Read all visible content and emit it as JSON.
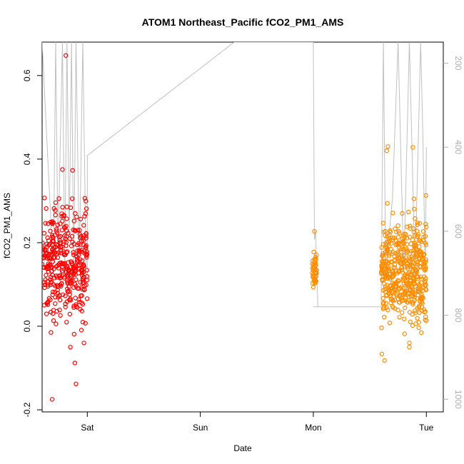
{
  "chart_data": {
    "type": "scatter",
    "title": "ATOM1 Northeast_Pacific fCO2_PM1_AMS",
    "xlabel": "Date",
    "ylabel": "fCO2_PM1_AMS",
    "x_ticks": [
      "Sat",
      "Sun",
      "Mon",
      "Tue"
    ],
    "x_tick_values": [
      1.0,
      2.0,
      3.0,
      4.0
    ],
    "xlim": [
      0.6,
      4.15
    ],
    "ylim": [
      -0.205,
      0.68
    ],
    "y_ticks": [
      -0.2,
      0.0,
      0.2,
      0.4,
      0.6
    ],
    "y2_ticks": [
      200,
      400,
      600,
      800,
      1000
    ],
    "y2lim": [
      1030,
      150
    ],
    "y2_reversed": true,
    "grid": false,
    "legend": "none",
    "colors": {
      "early": "#ff0000",
      "late": "#ff8c00",
      "altitude": "#c0c0c0"
    },
    "series": [
      {
        "color": "#ff0000",
        "clusters": [
          {
            "x_range": [
              0.6,
              1.0
            ],
            "y_center": 0.15,
            "y_spread": 0.07,
            "count": 380
          }
        ],
        "outliers": [
          {
            "x": 0.81,
            "y": 0.648
          },
          {
            "x": 0.69,
            "y": -0.175
          },
          {
            "x": 0.9,
            "y": -0.138
          },
          {
            "x": 0.89,
            "y": -0.088
          },
          {
            "x": 0.85,
            "y": -0.05
          },
          {
            "x": 0.62,
            "y": 0.307
          },
          {
            "x": 0.78,
            "y": 0.375
          },
          {
            "x": 0.87,
            "y": 0.373
          },
          {
            "x": 0.96,
            "y": 0.01
          },
          {
            "x": 0.97,
            "y": -0.04
          }
        ]
      },
      {
        "color": "#ff8c00",
        "clusters": [
          {
            "x_range": [
              2.99,
              3.03
            ],
            "y_center": 0.13,
            "y_spread": 0.02,
            "count": 40
          },
          {
            "x_range": [
              3.6,
              4.0
            ],
            "y_center": 0.13,
            "y_spread": 0.06,
            "count": 480
          }
        ],
        "outliers": [
          {
            "x": 3.01,
            "y": 0.227
          },
          {
            "x": 3.63,
            "y": -0.082
          },
          {
            "x": 3.66,
            "y": 0.43
          },
          {
            "x": 3.65,
            "y": 0.42
          },
          {
            "x": 3.88,
            "y": 0.428
          },
          {
            "x": 3.85,
            "y": -0.05
          },
          {
            "x": 3.85,
            "y": -0.04
          },
          {
            "x": 3.99,
            "y": 0.015
          },
          {
            "x": 4.0,
            "y": 0.013
          }
        ]
      }
    ],
    "altitude_line": {
      "color": "#c0c0c0",
      "segments": [
        {
          "x": [
            0.6,
            0.7,
            0.72,
            0.74,
            0.78,
            0.8,
            0.82,
            0.84,
            0.86,
            0.88,
            0.9,
            0.93,
            0.96,
            0.99
          ],
          "y": [
            150,
            700,
            150,
            650,
            150,
            700,
            150,
            620,
            150,
            700,
            150,
            680,
            150,
            700
          ]
        },
        {
          "x": [
            0.99,
            1.0,
            1.0,
            2.3,
            3.0,
            3.01,
            3.02,
            3.02,
            3.04
          ],
          "y": [
            700,
            720,
            420,
            150,
            150,
            620,
            600,
            600,
            780
          ]
        },
        {
          "x": [
            3.0,
            3.0,
            3.6,
            3.62,
            3.64,
            3.7,
            3.75,
            3.8,
            3.85,
            3.9,
            3.95,
            3.97,
            3.99,
            4.0
          ],
          "y": [
            780,
            780,
            780,
            150,
            700,
            520,
            150,
            700,
            150,
            700,
            150,
            380,
            700,
            400
          ]
        }
      ]
    }
  }
}
